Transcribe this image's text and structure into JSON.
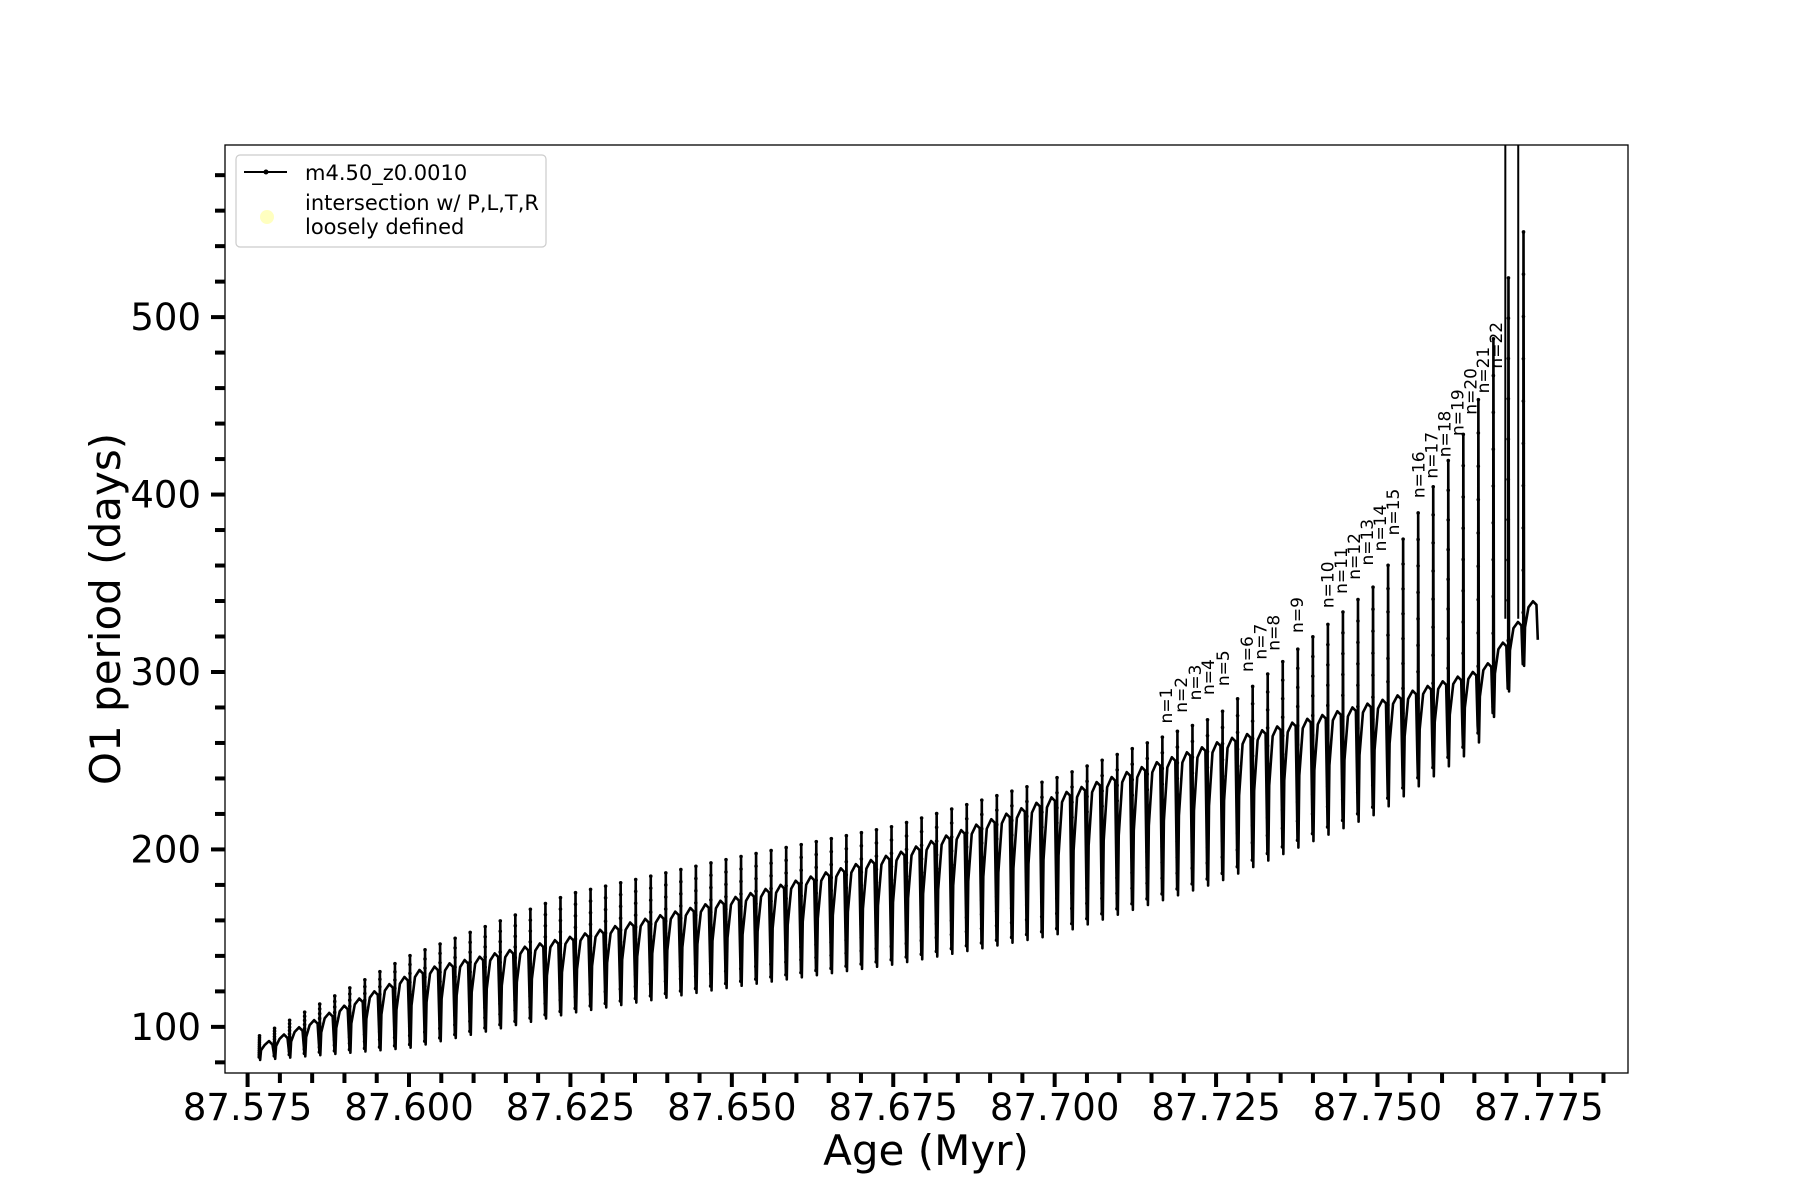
{
  "chart_data": {
    "type": "line",
    "title": "",
    "xlabel": "Age (Myr)",
    "ylabel": "O1 period (days)",
    "xlim": [
      87.5715,
      87.7888
    ],
    "ylim": [
      74,
      597
    ],
    "x_ticks": [
      87.575,
      87.6,
      87.625,
      87.65,
      87.675,
      87.7,
      87.725,
      87.75,
      87.775
    ],
    "x_tick_labels": [
      "87.575",
      "87.600",
      "87.625",
      "87.650",
      "87.675",
      "87.700",
      "87.725",
      "87.750",
      "87.775"
    ],
    "x_minor_step": 0.005,
    "y_ticks": [
      100,
      200,
      300,
      400,
      500
    ],
    "y_tick_labels": [
      "100",
      "200",
      "300",
      "400",
      "500"
    ],
    "y_minor_step": 20,
    "grid": false,
    "legend_position": "upper-left",
    "legend": [
      {
        "label": "m4.50_z0.0010",
        "marker": "line-with-dots",
        "color": "#000000"
      },
      {
        "label": "intersection w/ P,L,T,R\nloosely defined",
        "marker": "circle",
        "color": "#ffffc0"
      }
    ],
    "series": [
      {
        "name": "m4.50_z0.0010",
        "color": "#000000",
        "pulse_model": {
          "age_start": 87.5768,
          "age_end": 87.7749,
          "cycles": 85,
          "baseline_profile": [
            [
              87.577,
              90
            ],
            [
              87.6,
              130
            ],
            [
              87.625,
              150
            ],
            [
              87.65,
              172
            ],
            [
              87.675,
              197
            ],
            [
              87.7,
              230
            ],
            [
              87.725,
              260
            ],
            [
              87.75,
              283
            ],
            [
              87.765,
              300
            ],
            [
              87.775,
              350
            ]
          ],
          "trough_profile": [
            [
              87.577,
              83
            ],
            [
              87.6,
              90
            ],
            [
              87.625,
              110
            ],
            [
              87.65,
              125
            ],
            [
              87.675,
              138
            ],
            [
              87.7,
              155
            ],
            [
              87.725,
              185
            ],
            [
              87.75,
              225
            ],
            [
              87.765,
              262
            ],
            [
              87.775,
              325
            ]
          ],
          "peak_profile": [
            [
              87.577,
              95
            ],
            [
              87.6,
              140
            ],
            [
              87.625,
              175
            ],
            [
              87.65,
              195
            ],
            [
              87.675,
              213
            ],
            [
              87.7,
              240
            ],
            [
              87.725,
              275
            ],
            [
              87.75,
              350
            ],
            [
              87.765,
              445
            ],
            [
              87.772,
              548
            ]
          ]
        }
      }
    ],
    "annotations": [
      {
        "text": "n=1",
        "x": 87.7182,
        "y": 271
      },
      {
        "text": "n=2",
        "x": 87.7205,
        "y": 277
      },
      {
        "text": "n=3",
        "x": 87.7227,
        "y": 284
      },
      {
        "text": "n=4",
        "x": 87.7247,
        "y": 287
      },
      {
        "text": "n=5",
        "x": 87.727,
        "y": 292
      },
      {
        "text": "n=6",
        "x": 87.7307,
        "y": 300
      },
      {
        "text": "n=7",
        "x": 87.7328,
        "y": 307
      },
      {
        "text": "n=8",
        "x": 87.7348,
        "y": 312
      },
      {
        "text": "n=9",
        "x": 87.7385,
        "y": 322
      },
      {
        "text": "n=10",
        "x": 87.7432,
        "y": 336
      },
      {
        "text": "n=11",
        "x": 87.7453,
        "y": 344
      },
      {
        "text": "n=12",
        "x": 87.7473,
        "y": 352
      },
      {
        "text": "n=13",
        "x": 87.7493,
        "y": 360
      },
      {
        "text": "n=14",
        "x": 87.7513,
        "y": 368
      },
      {
        "text": "n=15",
        "x": 87.7533,
        "y": 377
      },
      {
        "text": "n=16",
        "x": 87.7573,
        "y": 398
      },
      {
        "text": "n=17",
        "x": 87.7593,
        "y": 409
      },
      {
        "text": "n=18",
        "x": 87.7613,
        "y": 421
      },
      {
        "text": "n=19",
        "x": 87.7633,
        "y": 433
      },
      {
        "text": "n=20",
        "x": 87.7653,
        "y": 445
      },
      {
        "text": "n=21",
        "x": 87.7673,
        "y": 457
      },
      {
        "text": "n=22",
        "x": 87.7693,
        "y": 471
      }
    ],
    "vertical_spikes": [
      87.7698,
      87.7718
    ]
  }
}
